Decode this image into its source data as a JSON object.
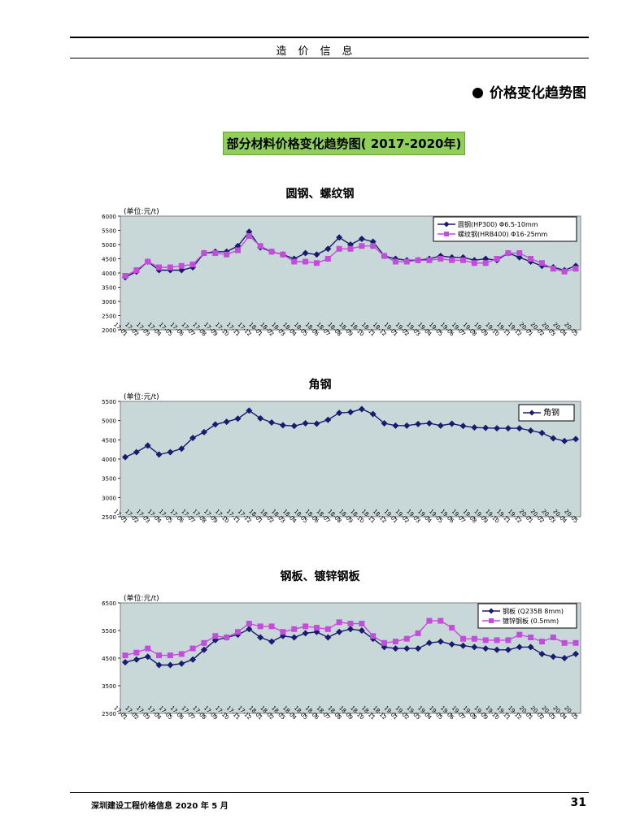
{
  "header": {
    "title": "造价信息"
  },
  "section": {
    "heading": "价格变化趋势图"
  },
  "banner": {
    "text": "部分材料价格变化趋势图( 2017-2020年)"
  },
  "footer": {
    "publication": "深圳建设工程价格信息  2020 年 5 月",
    "page": "31"
  },
  "colors": {
    "series_dark": "#1a1a6e",
    "series_light": "#c44cdc",
    "plot_bg": "#c8d8d8",
    "banner_bg": "#8fcf5a"
  },
  "chart_data": [
    {
      "type": "line",
      "title": "圆钢、螺纹钢",
      "unit_label": "(单位:元/t)",
      "ylim": [
        2000,
        6000
      ],
      "yticks": [
        2000,
        2500,
        3000,
        3500,
        4000,
        4500,
        5000,
        5500,
        6000
      ],
      "legend_position": "top-right",
      "grid": false,
      "categories": [
        "17-01",
        "17-02",
        "17-03",
        "17-04",
        "17-05",
        "17-06",
        "17-07",
        "17-08",
        "17-09",
        "17-10",
        "17-11",
        "17-12",
        "18-01",
        "18-02",
        "18-03",
        "18-04",
        "18-05",
        "18-06",
        "18-07",
        "18-08",
        "18-09",
        "18-10",
        "18-11",
        "18-12",
        "19-01",
        "19-02",
        "19-03",
        "19-04",
        "19-05",
        "19-06",
        "19-07",
        "19-08",
        "19-09",
        "19-10",
        "19-11",
        "19-12",
        "20-01",
        "20-02",
        "20-03",
        "20-04",
        "20-05"
      ],
      "series": [
        {
          "name": "圆钢(HP300) Φ6.5-10mm",
          "marker": "diamond",
          "color": "#1a1a6e",
          "values": [
            3850,
            4050,
            4400,
            4100,
            4100,
            4100,
            4200,
            4700,
            4750,
            4750,
            4950,
            5450,
            4900,
            4750,
            4650,
            4500,
            4700,
            4650,
            4850,
            5250,
            5000,
            5200,
            5100,
            4600,
            4500,
            4450,
            4450,
            4500,
            4600,
            4550,
            4550,
            4450,
            4500,
            4450,
            4700,
            4550,
            4400,
            4250,
            4200,
            4100,
            4250
          ]
        },
        {
          "name": "螺纹钢(HRB400) Φ16-25mm",
          "marker": "square",
          "color": "#c44cdc",
          "values": [
            3900,
            4100,
            4400,
            4200,
            4200,
            4250,
            4300,
            4700,
            4700,
            4650,
            4800,
            5300,
            4950,
            4750,
            4650,
            4400,
            4400,
            4350,
            4500,
            4850,
            4850,
            4950,
            4950,
            4600,
            4400,
            4400,
            4450,
            4450,
            4500,
            4450,
            4450,
            4350,
            4350,
            4500,
            4700,
            4700,
            4500,
            4350,
            4150,
            4050,
            4150
          ]
        }
      ]
    },
    {
      "type": "line",
      "title": "角钢",
      "unit_label": "(单位:元/t)",
      "ylim": [
        2500,
        5500
      ],
      "yticks": [
        2500,
        3000,
        3500,
        4000,
        4500,
        5000,
        5500
      ],
      "legend_position": "top-right",
      "grid": false,
      "categories": [
        "17-01",
        "17-02",
        "17-03",
        "17-04",
        "17-05",
        "17-06",
        "17-07",
        "17-08",
        "17-09",
        "17-10",
        "17-11",
        "17-12",
        "18-01",
        "18-02",
        "18-03",
        "18-04",
        "18-05",
        "18-06",
        "18-07",
        "18-08",
        "18-09",
        "18-10",
        "18-11",
        "18-12",
        "19-01",
        "19-02",
        "19-03",
        "19-04",
        "19-05",
        "19-06",
        "19-07",
        "19-08",
        "19-09",
        "19-10",
        "19-11",
        "19-12",
        "20-01",
        "20-02",
        "20-03",
        "20-04",
        "20-05"
      ],
      "series": [
        {
          "name": "角钢",
          "marker": "diamond",
          "color": "#1a1a6e",
          "values": [
            4050,
            4180,
            4350,
            4120,
            4180,
            4270,
            4550,
            4700,
            4900,
            4970,
            5050,
            5260,
            5060,
            4950,
            4880,
            4860,
            4930,
            4920,
            5020,
            5200,
            5220,
            5300,
            5170,
            4930,
            4870,
            4870,
            4910,
            4930,
            4870,
            4920,
            4860,
            4820,
            4810,
            4800,
            4800,
            4800,
            4740,
            4680,
            4540,
            4470,
            4520
          ]
        }
      ]
    },
    {
      "type": "line",
      "title": "钢板、镀锌钢板",
      "unit_label": "(单位:元/t)",
      "ylim": [
        2500,
        6500
      ],
      "yticks": [
        2500,
        3500,
        4500,
        5500,
        6500
      ],
      "legend_position": "top-right",
      "grid": false,
      "categories": [
        "17-01",
        "17-02",
        "17-03",
        "17-04",
        "17-05",
        "17-06",
        "17-07",
        "17-08",
        "17-09",
        "17-10",
        "17-11",
        "17-12",
        "18-01",
        "18-02",
        "18-03",
        "18-04",
        "18-05",
        "18-06",
        "18-07",
        "18-08",
        "18-09",
        "18-10",
        "18-11",
        "18-12",
        "19-01",
        "19-02",
        "19-03",
        "19-04",
        "19-05",
        "19-06",
        "19-07",
        "19-08",
        "19-09",
        "19-10",
        "19-11",
        "19-12",
        "20-01",
        "20-02",
        "20-03",
        "20-04",
        "20-05"
      ],
      "series": [
        {
          "name": "钢板 (Q235B 8mm)",
          "marker": "diamond",
          "color": "#1a1a6e",
          "values": [
            4350,
            4450,
            4550,
            4250,
            4250,
            4300,
            4450,
            4800,
            5150,
            5250,
            5350,
            5550,
            5250,
            5100,
            5300,
            5250,
            5400,
            5450,
            5250,
            5450,
            5550,
            5500,
            5200,
            4900,
            4850,
            4850,
            4850,
            5050,
            5100,
            5000,
            4950,
            4900,
            4850,
            4800,
            4800,
            4900,
            4900,
            4650,
            4550,
            4500,
            4650
          ]
        },
        {
          "name": "镀锌钢板 (0.5mm)",
          "marker": "square",
          "color": "#c44cdc",
          "values": [
            4600,
            4700,
            4850,
            4600,
            4600,
            4650,
            4850,
            5050,
            5300,
            5250,
            5450,
            5750,
            5650,
            5650,
            5450,
            5550,
            5650,
            5600,
            5550,
            5800,
            5750,
            5750,
            5300,
            5050,
            5100,
            5200,
            5400,
            5850,
            5850,
            5600,
            5200,
            5200,
            5150,
            5150,
            5150,
            5350,
            5250,
            5100,
            5250,
            5050,
            5050
          ]
        }
      ]
    }
  ]
}
